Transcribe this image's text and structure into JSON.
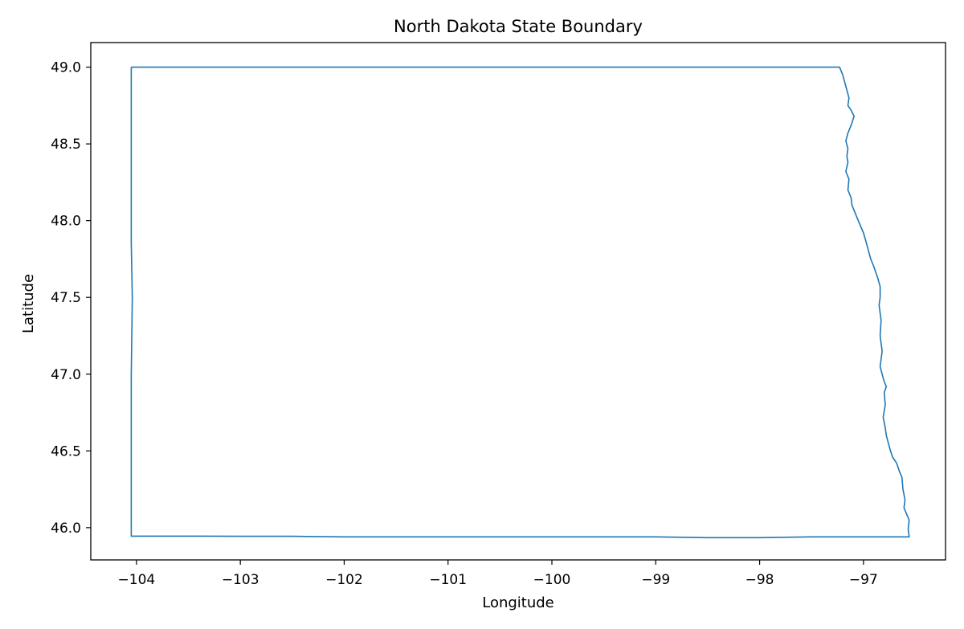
{
  "chart_data": {
    "type": "line",
    "title": "North Dakota State Boundary",
    "xlabel": "Longitude",
    "ylabel": "Latitude",
    "xlim": [
      -104.44,
      -96.21
    ],
    "ylim": [
      45.79,
      49.16
    ],
    "grid": false,
    "legend": "none",
    "xticks": [
      {
        "value": -104,
        "label": "−104"
      },
      {
        "value": -103,
        "label": "−103"
      },
      {
        "value": -102,
        "label": "−102"
      },
      {
        "value": -101,
        "label": "−101"
      },
      {
        "value": -100,
        "label": "−100"
      },
      {
        "value": -99,
        "label": "−99"
      },
      {
        "value": -98,
        "label": "−98"
      },
      {
        "value": -97,
        "label": "−97"
      }
    ],
    "yticks": [
      {
        "value": 46.0,
        "label": "46.0"
      },
      {
        "value": 46.5,
        "label": "46.5"
      },
      {
        "value": 47.0,
        "label": "47.0"
      },
      {
        "value": 47.5,
        "label": "47.5"
      },
      {
        "value": 48.0,
        "label": "48.0"
      },
      {
        "value": 48.5,
        "label": "48.5"
      },
      {
        "value": 49.0,
        "label": "49.0"
      }
    ],
    "series": [
      {
        "color": "#1f77b4",
        "x": [
          -104.05,
          -103.0,
          -102.0,
          -101.0,
          -100.0,
          -99.0,
          -98.5,
          -98.0,
          -97.23,
          -97.2,
          -97.18,
          -97.16,
          -97.14,
          -97.15,
          -97.12,
          -97.09,
          -97.12,
          -97.15,
          -97.17,
          -97.15,
          -97.16,
          -97.15,
          -97.17,
          -97.14,
          -97.15,
          -97.12,
          -97.11,
          -97.08,
          -97.05,
          -97.0,
          -96.97,
          -96.95,
          -96.93,
          -96.9,
          -96.86,
          -96.84,
          -96.84,
          -96.85,
          -96.83,
          -96.84,
          -96.82,
          -96.84,
          -96.82,
          -96.8,
          -96.78,
          -96.8,
          -96.79,
          -96.81,
          -96.79,
          -96.78,
          -96.76,
          -96.74,
          -96.72,
          -96.68,
          -96.65,
          -96.63,
          -96.62,
          -96.6,
          -96.61,
          -96.58,
          -96.56,
          -96.57,
          -96.56,
          -97.5,
          -98.0,
          -98.5,
          -99.0,
          -99.5,
          -100.0,
          -100.5,
          -101.0,
          -101.5,
          -102.0,
          -102.5,
          -103.0,
          -103.5,
          -104.05,
          -104.05,
          -104.05,
          -104.04,
          -104.05,
          -104.05,
          -104.05
        ],
        "y": [
          49.0,
          49.0,
          49.0,
          49.0,
          49.0,
          49.0,
          49.0,
          49.0,
          49.0,
          48.95,
          48.9,
          48.85,
          48.8,
          48.75,
          48.72,
          48.68,
          48.62,
          48.57,
          48.52,
          48.47,
          48.42,
          48.38,
          48.32,
          48.27,
          48.2,
          48.15,
          48.1,
          48.05,
          48.0,
          47.92,
          47.85,
          47.8,
          47.75,
          47.7,
          47.62,
          47.57,
          47.5,
          47.45,
          47.35,
          47.25,
          47.15,
          47.05,
          47.0,
          46.95,
          46.92,
          46.88,
          46.8,
          46.72,
          46.65,
          46.6,
          46.55,
          46.5,
          46.46,
          46.42,
          46.36,
          46.33,
          46.25,
          46.18,
          46.13,
          46.08,
          46.05,
          45.99,
          45.94,
          45.94,
          45.935,
          45.935,
          45.94,
          45.94,
          45.94,
          45.94,
          45.94,
          45.94,
          45.94,
          45.944,
          45.944,
          45.945,
          45.945,
          46.5,
          47.0,
          47.5,
          47.85,
          48.5,
          49.0
        ]
      }
    ]
  }
}
